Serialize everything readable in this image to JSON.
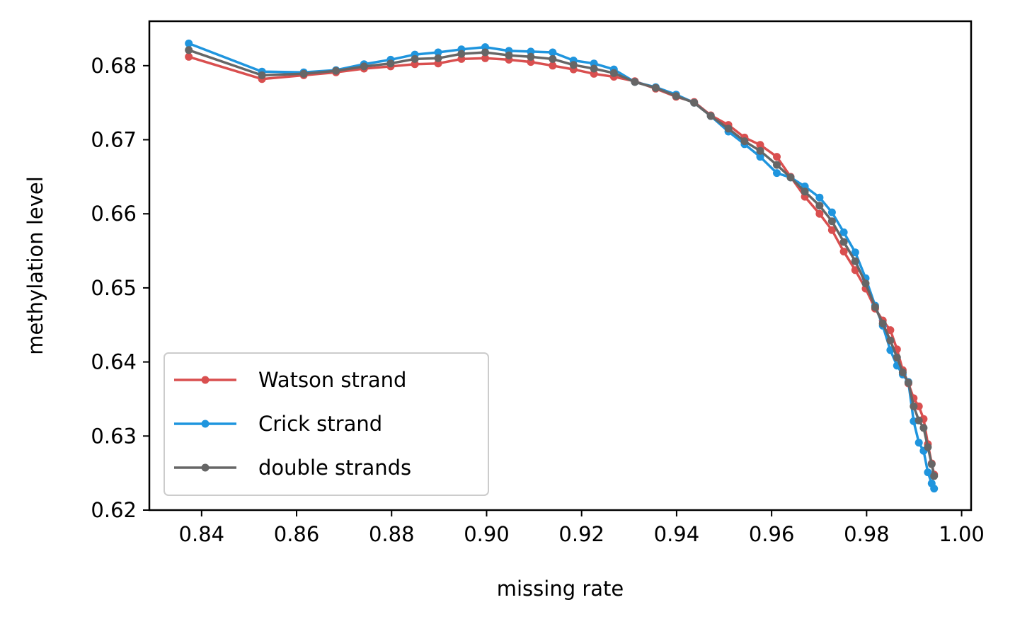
{
  "chart_data": {
    "type": "line",
    "title": "",
    "xlabel": "missing rate",
    "ylabel": "methylation level",
    "xlim": [
      0.829,
      1.002
    ],
    "ylim": [
      0.62,
      0.686
    ],
    "xticks": [
      0.84,
      0.86,
      0.88,
      0.9,
      0.92,
      0.94,
      0.96,
      0.98,
      1.0
    ],
    "xtick_labels": [
      "0.84",
      "0.86",
      "0.88",
      "0.90",
      "0.92",
      "0.94",
      "0.96",
      "0.98",
      "1.00"
    ],
    "yticks": [
      0.62,
      0.63,
      0.64,
      0.65,
      0.66,
      0.67,
      0.68
    ],
    "ytick_labels": [
      "0.62",
      "0.63",
      "0.64",
      "0.65",
      "0.66",
      "0.67",
      "0.68"
    ],
    "grid": false,
    "legend_position": "lower-left",
    "series": [
      {
        "name": "Watson strand",
        "color": "#d94f4f",
        "x": [
          0.8373,
          0.8527,
          0.8615,
          0.8683,
          0.8742,
          0.8798,
          0.8849,
          0.8898,
          0.8947,
          0.8997,
          0.9047,
          0.9093,
          0.9139,
          0.9183,
          0.9226,
          0.9268,
          0.9312,
          0.9356,
          0.9399,
          0.9437,
          0.9472,
          0.9509,
          0.9543,
          0.9576,
          0.9611,
          0.964,
          0.967,
          0.9701,
          0.9727,
          0.9752,
          0.9776,
          0.9798,
          0.9818,
          0.9834,
          0.985,
          0.9864,
          0.9876,
          0.9888,
          0.9899,
          0.991,
          0.992,
          0.9929,
          0.9937,
          0.9942
        ],
        "y": [
          0.6812,
          0.6782,
          0.6787,
          0.6791,
          0.6796,
          0.6799,
          0.6802,
          0.6803,
          0.6809,
          0.681,
          0.6808,
          0.6805,
          0.68,
          0.6795,
          0.6789,
          0.6785,
          0.6779,
          0.6769,
          0.6758,
          0.6751,
          0.6733,
          0.672,
          0.6703,
          0.6693,
          0.6677,
          0.665,
          0.6623,
          0.66,
          0.6578,
          0.6549,
          0.6524,
          0.6499,
          0.6472,
          0.6456,
          0.6443,
          0.6417,
          0.6389,
          0.6371,
          0.6351,
          0.634,
          0.6323,
          0.6289,
          0.6263,
          0.6248
        ]
      },
      {
        "name": "Crick strand",
        "color": "#1f95de",
        "x": [
          0.8373,
          0.8527,
          0.8615,
          0.8683,
          0.8742,
          0.8798,
          0.8849,
          0.8898,
          0.8947,
          0.8997,
          0.9047,
          0.9093,
          0.9139,
          0.9183,
          0.9226,
          0.9268,
          0.9312,
          0.9356,
          0.9399,
          0.9437,
          0.9472,
          0.9509,
          0.9543,
          0.9576,
          0.9611,
          0.964,
          0.967,
          0.9701,
          0.9727,
          0.9752,
          0.9776,
          0.9798,
          0.9818,
          0.9834,
          0.985,
          0.9864,
          0.9876,
          0.9888,
          0.9899,
          0.991,
          0.992,
          0.9929,
          0.9937,
          0.9942
        ],
        "y": [
          0.683,
          0.6792,
          0.6791,
          0.6794,
          0.6802,
          0.6808,
          0.6815,
          0.6818,
          0.6822,
          0.6825,
          0.682,
          0.6819,
          0.6818,
          0.6807,
          0.6803,
          0.6795,
          0.6778,
          0.6771,
          0.6761,
          0.675,
          0.6732,
          0.6711,
          0.6694,
          0.6677,
          0.6655,
          0.6649,
          0.6637,
          0.6622,
          0.6602,
          0.6575,
          0.6548,
          0.6513,
          0.6476,
          0.6449,
          0.6416,
          0.6395,
          0.6383,
          0.6373,
          0.632,
          0.6291,
          0.628,
          0.6251,
          0.6236,
          0.6229
        ]
      },
      {
        "name": "double strands",
        "color": "#666666",
        "x": [
          0.8373,
          0.8527,
          0.8615,
          0.8683,
          0.8742,
          0.8798,
          0.8849,
          0.8898,
          0.8947,
          0.8997,
          0.9047,
          0.9093,
          0.9139,
          0.9183,
          0.9226,
          0.9268,
          0.9312,
          0.9356,
          0.9399,
          0.9437,
          0.9472,
          0.9509,
          0.9543,
          0.9576,
          0.9611,
          0.964,
          0.967,
          0.9701,
          0.9727,
          0.9752,
          0.9776,
          0.9798,
          0.9818,
          0.9834,
          0.985,
          0.9864,
          0.9876,
          0.9888,
          0.9899,
          0.991,
          0.992,
          0.9929,
          0.9937,
          0.9942
        ],
        "y": [
          0.6821,
          0.6787,
          0.6789,
          0.6793,
          0.6799,
          0.6803,
          0.6809,
          0.681,
          0.6816,
          0.6818,
          0.6814,
          0.6812,
          0.6809,
          0.6801,
          0.6796,
          0.679,
          0.6778,
          0.677,
          0.6759,
          0.675,
          0.6732,
          0.6715,
          0.6698,
          0.6685,
          0.6666,
          0.6649,
          0.663,
          0.6611,
          0.659,
          0.6562,
          0.6536,
          0.6506,
          0.6474,
          0.6452,
          0.6429,
          0.6406,
          0.6386,
          0.6372,
          0.634,
          0.6321,
          0.6311,
          0.6285,
          0.6262,
          0.6246
        ]
      }
    ]
  }
}
